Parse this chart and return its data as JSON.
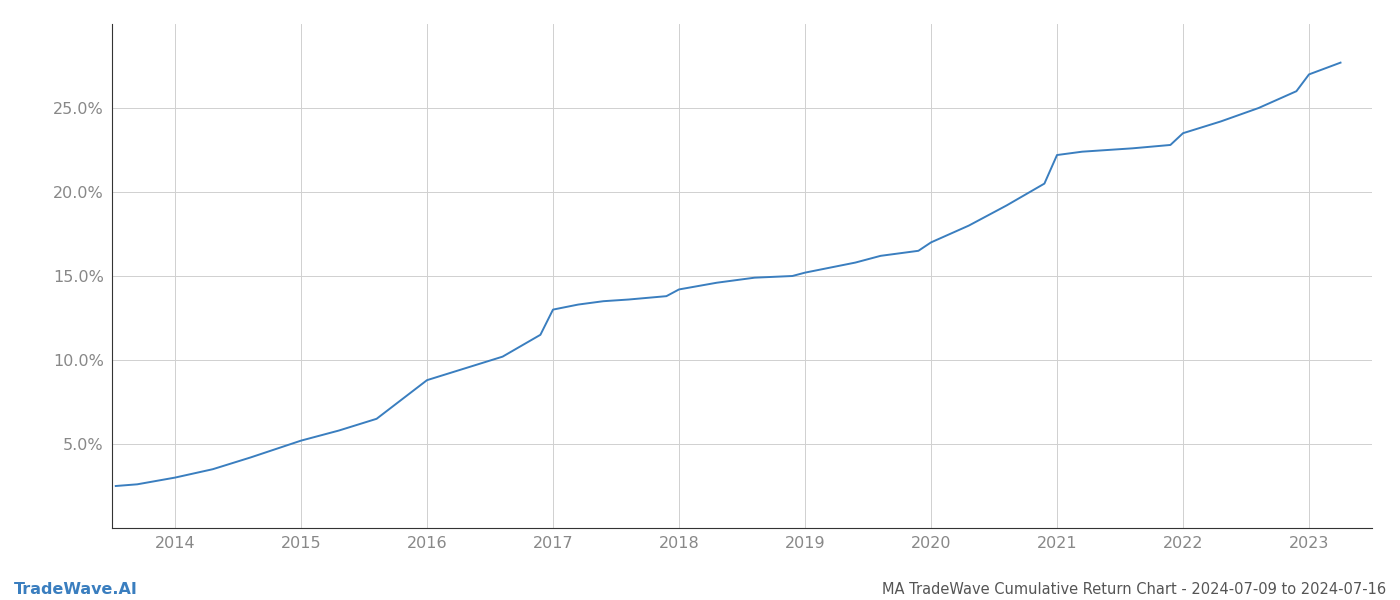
{
  "title": "MA TradeWave Cumulative Return Chart - 2024-07-09 to 2024-07-16",
  "watermark": "TradeWave.AI",
  "line_color": "#3a7ebf",
  "background_color": "#ffffff",
  "grid_color": "#d0d0d0",
  "x_years": [
    2014,
    2015,
    2016,
    2017,
    2018,
    2019,
    2020,
    2021,
    2022,
    2023
  ],
  "data_x": [
    2013.53,
    2013.7,
    2014.0,
    2014.3,
    2014.6,
    2015.0,
    2015.3,
    2015.6,
    2016.0,
    2016.3,
    2016.6,
    2016.9,
    2017.0,
    2017.2,
    2017.4,
    2017.6,
    2017.9,
    2018.0,
    2018.3,
    2018.6,
    2018.9,
    2019.0,
    2019.2,
    2019.4,
    2019.6,
    2019.9,
    2020.0,
    2020.15,
    2020.3,
    2020.6,
    2020.9,
    2021.0,
    2021.2,
    2021.4,
    2021.6,
    2021.9,
    2022.0,
    2022.3,
    2022.6,
    2022.9,
    2023.0,
    2023.25
  ],
  "data_y": [
    2.5,
    2.6,
    3.0,
    3.5,
    4.2,
    5.2,
    5.8,
    6.5,
    8.8,
    9.5,
    10.2,
    11.5,
    13.0,
    13.3,
    13.5,
    13.6,
    13.8,
    14.2,
    14.6,
    14.9,
    15.0,
    15.2,
    15.5,
    15.8,
    16.2,
    16.5,
    17.0,
    17.5,
    18.0,
    19.2,
    20.5,
    22.2,
    22.4,
    22.5,
    22.6,
    22.8,
    23.5,
    24.2,
    25.0,
    26.0,
    27.0,
    27.7
  ],
  "ylim": [
    0,
    30
  ],
  "xlim": [
    2013.5,
    2023.5
  ],
  "yticks": [
    5.0,
    10.0,
    15.0,
    20.0,
    25.0
  ],
  "line_width": 1.4,
  "title_fontsize": 10.5,
  "tick_fontsize": 11.5,
  "watermark_fontsize": 11.5,
  "axes_label_color": "#888888",
  "title_color": "#555555",
  "spine_color": "#333333"
}
